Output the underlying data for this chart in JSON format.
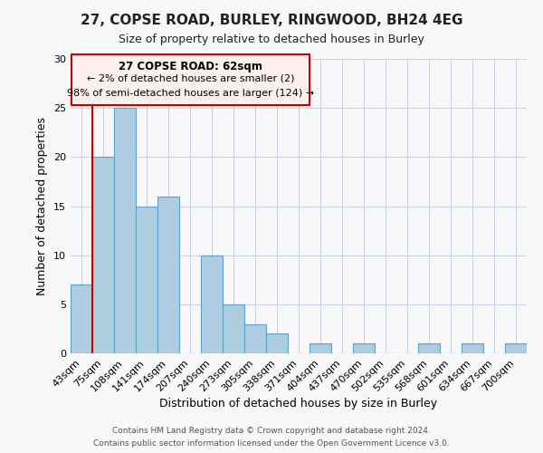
{
  "title": "27, COPSE ROAD, BURLEY, RINGWOOD, BH24 4EG",
  "subtitle": "Size of property relative to detached houses in Burley",
  "xlabel": "Distribution of detached houses by size in Burley",
  "ylabel": "Number of detached properties",
  "bar_labels": [
    "43sqm",
    "75sqm",
    "108sqm",
    "141sqm",
    "174sqm",
    "207sqm",
    "240sqm",
    "273sqm",
    "305sqm",
    "338sqm",
    "371sqm",
    "404sqm",
    "437sqm",
    "470sqm",
    "502sqm",
    "535sqm",
    "568sqm",
    "601sqm",
    "634sqm",
    "667sqm",
    "700sqm"
  ],
  "bar_values": [
    7,
    20,
    25,
    15,
    16,
    0,
    10,
    5,
    3,
    2,
    0,
    1,
    0,
    1,
    0,
    0,
    1,
    0,
    1,
    0,
    1
  ],
  "bar_color": "#aecde0",
  "bar_edge_color": "#5ba3c9",
  "annotation_title": "27 COPSE ROAD: 62sqm",
  "annotation_line1": "← 2% of detached houses are smaller (2)",
  "annotation_line2": "98% of semi-detached houses are larger (124) →",
  "footer1": "Contains HM Land Registry data © Crown copyright and database right 2024.",
  "footer2": "Contains public sector information licensed under the Open Government Licence v3.0.",
  "ylim": [
    0,
    30
  ],
  "yticks": [
    0,
    5,
    10,
    15,
    20,
    25,
    30
  ],
  "bg_color": "#f8f8f8",
  "grid_color": "#c8d4e8",
  "red_line_color": "#cc0000",
  "annotation_box_facecolor": "#fff0f0",
  "annotation_box_edgecolor": "#cc0000"
}
